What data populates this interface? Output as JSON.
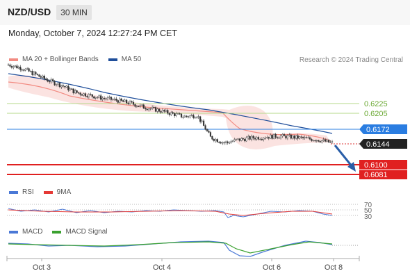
{
  "header": {
    "symbol": "NZD/USD",
    "timeframe": "30 MIN"
  },
  "datetime": "Monday, October 7, 2024 12:27:24 PM CET",
  "legend_main": [
    {
      "label": "MA 20 + Bollinger Bands",
      "color": "#f28b82"
    },
    {
      "label": "MA 50",
      "color": "#1f4e9a"
    }
  ],
  "credit": "Research © 2024 Trading Central",
  "legend_rsi": [
    {
      "label": "RSI",
      "color": "#4a78d6"
    },
    {
      "label": "9MA",
      "color": "#e53935"
    }
  ],
  "legend_macd": [
    {
      "label": "MACD",
      "color": "#4a78d6"
    },
    {
      "label": "MACD Signal",
      "color": "#3aa12f"
    }
  ],
  "colors": {
    "resistance": "#8dc63f",
    "current": "#2a7de1",
    "support": "#e02020",
    "last_price": "#222222",
    "arrow": "#2a5ea8"
  },
  "chart_data": {
    "type": "candlestick",
    "x_tick_labels": [
      "Oct 3",
      "Oct 4",
      "Oct 6",
      "Oct 8"
    ],
    "price_levels": [
      {
        "value": "0.6225",
        "kind": "resistance"
      },
      {
        "value": "0.6205",
        "kind": "resistance"
      },
      {
        "value": "0.6172",
        "kind": "current"
      },
      {
        "value": "0.6144",
        "kind": "last"
      },
      {
        "value": "0.6100",
        "kind": "support"
      },
      {
        "value": "0.6081",
        "kind": "support"
      }
    ],
    "rsi_levels": [
      "70",
      "50",
      "30"
    ],
    "approx_close_path": [
      0.6305,
      0.6298,
      0.6285,
      0.6272,
      0.6262,
      0.6248,
      0.6242,
      0.6236,
      0.6232,
      0.6226,
      0.6218,
      0.6212,
      0.6205,
      0.6198,
      0.6201,
      0.6155,
      0.6144,
      0.615,
      0.6154,
      0.6156,
      0.6158,
      0.6156,
      0.6153,
      0.615,
      0.6144
    ]
  }
}
